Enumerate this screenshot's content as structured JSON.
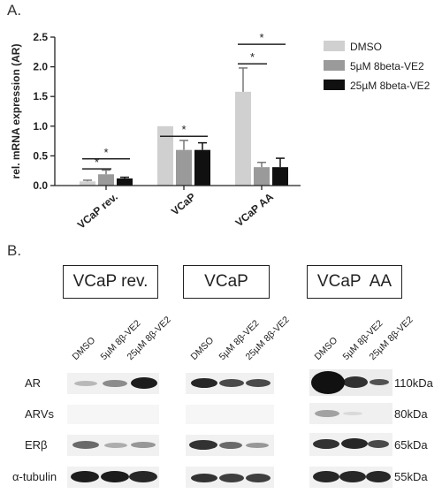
{
  "figure": {
    "panel_a_label": "A.",
    "panel_b_label": "B."
  },
  "chart_data": {
    "type": "bar",
    "ylabel": "rel. mRNA expression (AR)",
    "xlabel": "",
    "ylim": [
      0,
      2.5
    ],
    "yticks": [
      "0.0",
      "0.5",
      "1.0",
      "1.5",
      "2.0",
      "2.5"
    ],
    "categories": [
      "VCaP rev.",
      "VCaP",
      "VCaP AA"
    ],
    "series": [
      {
        "name": "DMSO",
        "color": "#d0d0d0",
        "values": [
          0.07,
          1.0,
          1.58
        ],
        "errors": [
          0.02,
          0.0,
          0.4
        ]
      },
      {
        "name": "5µM 8beta-VE2",
        "color": "#9a9a9a",
        "values": [
          0.19,
          0.6,
          0.31
        ],
        "errors": [
          0.07,
          0.16,
          0.08
        ]
      },
      {
        "name": "25µM 8beta-VE2",
        "color": "#101010",
        "values": [
          0.12,
          0.6,
          0.31
        ],
        "errors": [
          0.02,
          0.12,
          0.15
        ]
      }
    ],
    "significance_marker": "*",
    "legend_position": "top-right"
  },
  "western_blot": {
    "groups": [
      "VCaP rev.",
      "VCaP",
      "VCaP  AA"
    ],
    "lanes": [
      "DMSO",
      "5µM 8β-VE2",
      "25µM 8β-VE2"
    ],
    "rows": [
      {
        "name": "AR",
        "mw": "110kDa"
      },
      {
        "name": "ARVs",
        "mw": "80kDa"
      },
      {
        "name": "ERβ",
        "mw": "65kDa"
      },
      {
        "name": "α-tubulin",
        "mw": "55kDa"
      }
    ]
  }
}
